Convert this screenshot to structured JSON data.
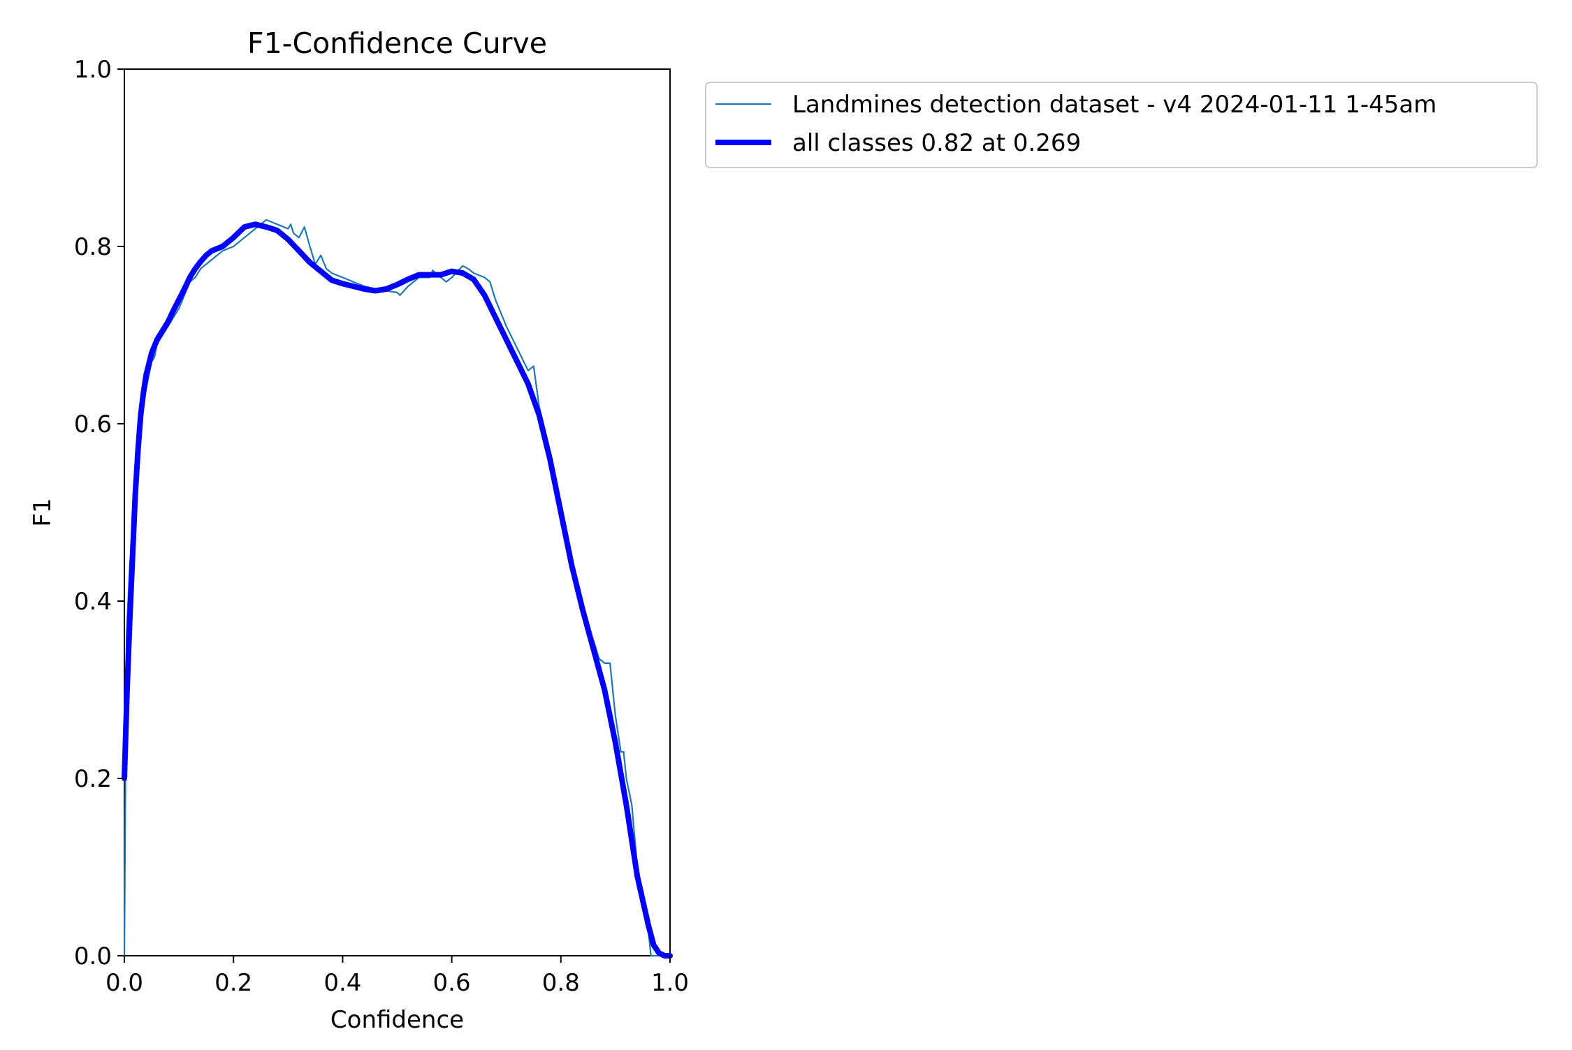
{
  "chart_data": {
    "type": "line",
    "title": "F1-Confidence Curve",
    "xlabel": "Confidence",
    "ylabel": "F1",
    "xlim": [
      0,
      1
    ],
    "ylim": [
      0,
      1
    ],
    "xticks": [
      "0.0",
      "0.2",
      "0.4",
      "0.6",
      "0.8",
      "1.0"
    ],
    "yticks": [
      "0.0",
      "0.2",
      "0.4",
      "0.6",
      "0.8",
      "1.0"
    ],
    "grid": false,
    "legend_position": "outside-top-right",
    "series": [
      {
        "name": "Landmines detection dataset - v4 2024-01-11 1-45am",
        "color": "#1f77b4",
        "style": "thin",
        "x": [
          0.0,
          0.002,
          0.004,
          0.01,
          0.02,
          0.025,
          0.03,
          0.04,
          0.05,
          0.055,
          0.06,
          0.07,
          0.08,
          0.09,
          0.1,
          0.11,
          0.12,
          0.13,
          0.135,
          0.14,
          0.15,
          0.16,
          0.18,
          0.2,
          0.22,
          0.24,
          0.26,
          0.28,
          0.3,
          0.305,
          0.31,
          0.32,
          0.33,
          0.34,
          0.35,
          0.36,
          0.37,
          0.38,
          0.4,
          0.42,
          0.44,
          0.46,
          0.48,
          0.5,
          0.505,
          0.52,
          0.54,
          0.56,
          0.565,
          0.58,
          0.59,
          0.6,
          0.62,
          0.63,
          0.64,
          0.66,
          0.67,
          0.68,
          0.7,
          0.72,
          0.74,
          0.75,
          0.76,
          0.78,
          0.8,
          0.82,
          0.84,
          0.85,
          0.86,
          0.87,
          0.88,
          0.89,
          0.9,
          0.91,
          0.915,
          0.92,
          0.93,
          0.935,
          0.94,
          0.95,
          0.96,
          0.965,
          0.97,
          0.975,
          0.98,
          0.99,
          1.0
        ],
        "y": [
          0.0,
          0.2,
          0.36,
          0.44,
          0.52,
          0.56,
          0.61,
          0.64,
          0.67,
          0.675,
          0.69,
          0.7,
          0.71,
          0.72,
          0.73,
          0.745,
          0.76,
          0.765,
          0.77,
          0.775,
          0.78,
          0.785,
          0.795,
          0.8,
          0.81,
          0.82,
          0.83,
          0.825,
          0.82,
          0.825,
          0.815,
          0.81,
          0.822,
          0.8,
          0.78,
          0.79,
          0.775,
          0.77,
          0.765,
          0.76,
          0.755,
          0.752,
          0.75,
          0.748,
          0.745,
          0.755,
          0.765,
          0.765,
          0.773,
          0.765,
          0.76,
          0.765,
          0.778,
          0.775,
          0.77,
          0.765,
          0.76,
          0.74,
          0.71,
          0.685,
          0.66,
          0.665,
          0.62,
          0.565,
          0.5,
          0.44,
          0.39,
          0.36,
          0.355,
          0.335,
          0.33,
          0.33,
          0.27,
          0.23,
          0.23,
          0.2,
          0.17,
          0.135,
          0.1,
          0.06,
          0.03,
          0.0,
          0.0,
          0.0,
          0.0,
          0.0,
          0.0
        ]
      },
      {
        "name": "all classes 0.82 at 0.269",
        "color": "#0000ff",
        "style": "thick",
        "x": [
          0.0,
          0.005,
          0.01,
          0.015,
          0.02,
          0.025,
          0.03,
          0.035,
          0.04,
          0.05,
          0.06,
          0.07,
          0.08,
          0.09,
          0.1,
          0.11,
          0.12,
          0.13,
          0.14,
          0.15,
          0.16,
          0.18,
          0.2,
          0.22,
          0.24,
          0.26,
          0.28,
          0.3,
          0.32,
          0.34,
          0.36,
          0.38,
          0.4,
          0.42,
          0.44,
          0.46,
          0.48,
          0.5,
          0.52,
          0.54,
          0.56,
          0.58,
          0.6,
          0.62,
          0.64,
          0.66,
          0.68,
          0.7,
          0.72,
          0.74,
          0.76,
          0.78,
          0.8,
          0.82,
          0.84,
          0.86,
          0.88,
          0.9,
          0.92,
          0.94,
          0.96,
          0.97,
          0.98,
          0.99,
          1.0
        ],
        "y": [
          0.2,
          0.3,
          0.38,
          0.45,
          0.52,
          0.57,
          0.61,
          0.635,
          0.655,
          0.68,
          0.695,
          0.705,
          0.715,
          0.728,
          0.74,
          0.752,
          0.765,
          0.775,
          0.783,
          0.79,
          0.795,
          0.8,
          0.81,
          0.822,
          0.825,
          0.822,
          0.818,
          0.808,
          0.795,
          0.782,
          0.772,
          0.762,
          0.758,
          0.755,
          0.752,
          0.75,
          0.752,
          0.757,
          0.763,
          0.768,
          0.768,
          0.768,
          0.772,
          0.77,
          0.763,
          0.745,
          0.72,
          0.695,
          0.67,
          0.645,
          0.61,
          0.56,
          0.5,
          0.44,
          0.39,
          0.345,
          0.3,
          0.24,
          0.17,
          0.09,
          0.035,
          0.012,
          0.003,
          0.0,
          0.0
        ]
      }
    ]
  }
}
